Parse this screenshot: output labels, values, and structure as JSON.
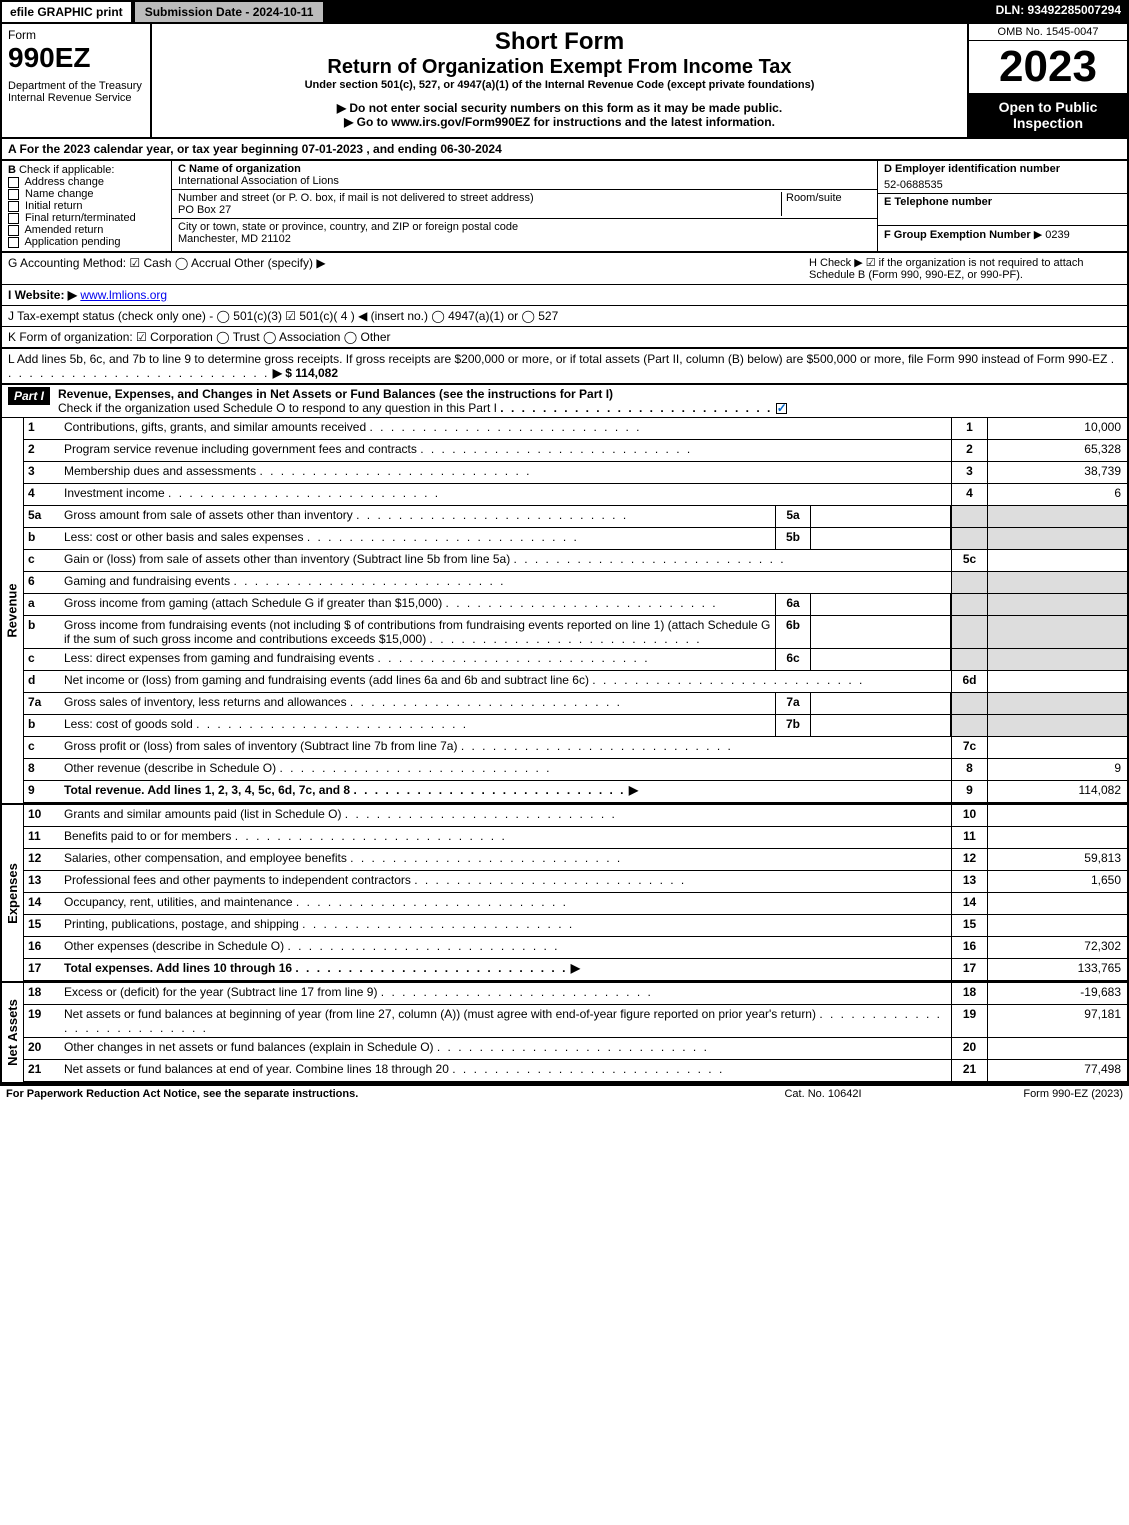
{
  "topbar": {
    "efile": "efile GRAPHIC print",
    "subdate": "Submission Date - 2024-10-11",
    "dln": "DLN: 93492285007294"
  },
  "header": {
    "form_word": "Form",
    "form_num": "990EZ",
    "dept": "Department of the Treasury\nInternal Revenue Service",
    "short_form": "Short Form",
    "title": "Return of Organization Exempt From Income Tax",
    "under": "Under section 501(c), 527, or 4947(a)(1) of the Internal Revenue Code (except private foundations)",
    "warn": "▶ Do not enter social security numbers on this form as it may be made public.",
    "goto": "▶ Go to www.irs.gov/Form990EZ for instructions and the latest information.",
    "omb": "OMB No. 1545-0047",
    "year": "2023",
    "open": "Open to Public Inspection"
  },
  "A": "A  For the 2023 calendar year, or tax year beginning 07-01-2023 , and ending 06-30-2024",
  "B": {
    "label": "B",
    "check_label": "Check if applicable:",
    "items": [
      "Address change",
      "Name change",
      "Initial return",
      "Final return/terminated",
      "Amended return",
      "Application pending"
    ]
  },
  "C": {
    "name_lbl": "C Name of organization",
    "name": "International Association of Lions",
    "addr_lbl": "Number and street (or P. O. box, if mail is not delivered to street address)",
    "room_lbl": "Room/suite",
    "addr": "PO Box 27",
    "city_lbl": "City or town, state or province, country, and ZIP or foreign postal code",
    "city": "Manchester, MD  21102"
  },
  "D": {
    "lbl": "D Employer identification number",
    "val": "52-0688535"
  },
  "E": {
    "lbl": "E Telephone number",
    "val": ""
  },
  "F": {
    "lbl": "F Group Exemption Number",
    "val": "▶ 0239"
  },
  "G": "G Accounting Method:   ☑ Cash   ◯ Accrual   Other (specify) ▶",
  "H": "H   Check ▶ ☑ if the organization is not required to attach Schedule B (Form 990, 990-EZ, or 990-PF).",
  "I": {
    "lbl": "I Website: ▶",
    "val": "www.lmlions.org"
  },
  "J": "J Tax-exempt status (check only one) - ◯ 501(c)(3)  ☑ 501(c)( 4 ) ◀ (insert no.)  ◯ 4947(a)(1) or  ◯ 527",
  "K": "K Form of organization:  ☑ Corporation  ◯ Trust  ◯ Association  ◯ Other",
  "L": {
    "text": "L Add lines 5b, 6c, and 7b to line 9 to determine gross receipts. If gross receipts are $200,000 or more, or if total assets (Part II, column (B) below) are $500,000 or more, file Form 990 instead of Form 990-EZ",
    "val": "▶ $ 114,082"
  },
  "part1": {
    "bar": "Part I",
    "title": "Revenue, Expenses, and Changes in Net Assets or Fund Balances (see the instructions for Part I)",
    "sub": "Check if the organization used Schedule O to respond to any question in this Part I"
  },
  "revenue": [
    {
      "n": "1",
      "d": "Contributions, gifts, grants, and similar amounts received",
      "r": "1",
      "v": "10,000"
    },
    {
      "n": "2",
      "d": "Program service revenue including government fees and contracts",
      "r": "2",
      "v": "65,328"
    },
    {
      "n": "3",
      "d": "Membership dues and assessments",
      "r": "3",
      "v": "38,739"
    },
    {
      "n": "4",
      "d": "Investment income",
      "r": "4",
      "v": "6"
    },
    {
      "n": "5a",
      "d": "Gross amount from sale of assets other than inventory",
      "sb": "5a",
      "shade": true
    },
    {
      "n": "b",
      "d": "Less: cost or other basis and sales expenses",
      "sb": "5b",
      "shade": true
    },
    {
      "n": "c",
      "d": "Gain or (loss) from sale of assets other than inventory (Subtract line 5b from line 5a)",
      "r": "5c",
      "v": ""
    },
    {
      "n": "6",
      "d": "Gaming and fundraising events",
      "shade": true,
      "nobox": true
    },
    {
      "n": "a",
      "d": "Gross income from gaming (attach Schedule G if greater than $15,000)",
      "sb": "6a",
      "shade": true
    },
    {
      "n": "b",
      "d": "Gross income from fundraising events (not including $                    of contributions from fundraising events reported on line 1) (attach Schedule G if the sum of such gross income and contributions exceeds $15,000)",
      "sb": "6b",
      "shade": true
    },
    {
      "n": "c",
      "d": "Less: direct expenses from gaming and fundraising events",
      "sb": "6c",
      "shade": true
    },
    {
      "n": "d",
      "d": "Net income or (loss) from gaming and fundraising events (add lines 6a and 6b and subtract line 6c)",
      "r": "6d",
      "v": ""
    },
    {
      "n": "7a",
      "d": "Gross sales of inventory, less returns and allowances",
      "sb": "7a",
      "shade": true
    },
    {
      "n": "b",
      "d": "Less: cost of goods sold",
      "sb": "7b",
      "shade": true
    },
    {
      "n": "c",
      "d": "Gross profit or (loss) from sales of inventory (Subtract line 7b from line 7a)",
      "r": "7c",
      "v": ""
    },
    {
      "n": "8",
      "d": "Other revenue (describe in Schedule O)",
      "r": "8",
      "v": "9"
    },
    {
      "n": "9",
      "d": "Total revenue. Add lines 1, 2, 3, 4, 5c, 6d, 7c, and 8",
      "r": "9",
      "v": "114,082",
      "bold": true,
      "arrow": true
    }
  ],
  "expenses": [
    {
      "n": "10",
      "d": "Grants and similar amounts paid (list in Schedule O)",
      "r": "10",
      "v": ""
    },
    {
      "n": "11",
      "d": "Benefits paid to or for members",
      "r": "11",
      "v": ""
    },
    {
      "n": "12",
      "d": "Salaries, other compensation, and employee benefits",
      "r": "12",
      "v": "59,813"
    },
    {
      "n": "13",
      "d": "Professional fees and other payments to independent contractors",
      "r": "13",
      "v": "1,650"
    },
    {
      "n": "14",
      "d": "Occupancy, rent, utilities, and maintenance",
      "r": "14",
      "v": ""
    },
    {
      "n": "15",
      "d": "Printing, publications, postage, and shipping",
      "r": "15",
      "v": ""
    },
    {
      "n": "16",
      "d": "Other expenses (describe in Schedule O)",
      "r": "16",
      "v": "72,302"
    },
    {
      "n": "17",
      "d": "Total expenses. Add lines 10 through 16",
      "r": "17",
      "v": "133,765",
      "bold": true,
      "arrow": true
    }
  ],
  "netassets": [
    {
      "n": "18",
      "d": "Excess or (deficit) for the year (Subtract line 17 from line 9)",
      "r": "18",
      "v": "-19,683"
    },
    {
      "n": "19",
      "d": "Net assets or fund balances at beginning of year (from line 27, column (A)) (must agree with end-of-year figure reported on prior year's return)",
      "r": "19",
      "v": "97,181"
    },
    {
      "n": "20",
      "d": "Other changes in net assets or fund balances (explain in Schedule O)",
      "r": "20",
      "v": ""
    },
    {
      "n": "21",
      "d": "Net assets or fund balances at end of year. Combine lines 18 through 20",
      "r": "21",
      "v": "77,498"
    }
  ],
  "footer": {
    "l": "For Paperwork Reduction Act Notice, see the separate instructions.",
    "c": "Cat. No. 10642I",
    "r": "Form 990-EZ (2023)"
  }
}
